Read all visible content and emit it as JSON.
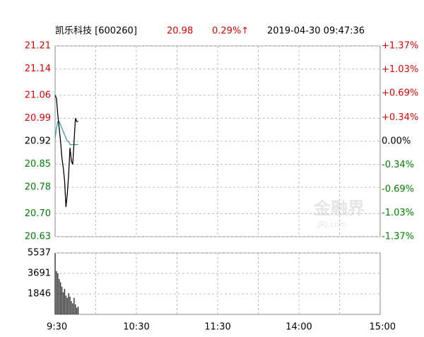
{
  "chart_data": {
    "type": "intraday",
    "title": "凯乐科技 [600260]",
    "price": 20.98,
    "change": "0.29%↑",
    "datetime": "2019-04-30 09:47:36",
    "watermark": "金融界",
    "watermark_sub": "JRJ.com",
    "up_color": "#e00000",
    "down_color": "#008000",
    "x": [
      0,
      1,
      2,
      3,
      4,
      5,
      6,
      7,
      8,
      9,
      10,
      11,
      12,
      13,
      14,
      15,
      16,
      17
    ],
    "xlim": [
      0,
      240
    ],
    "xticks": [
      {
        "value": 0,
        "label": "9:30"
      },
      {
        "value": 60,
        "label": "10:30"
      },
      {
        "value": 120,
        "label": "11:30"
      },
      {
        "value": 180,
        "label": "14:00"
      },
      {
        "value": 240,
        "label": "15:00"
      }
    ],
    "xgrid": [
      30,
      60,
      90,
      120,
      150,
      180,
      210
    ],
    "ylim": [
      20.63,
      21.21
    ],
    "yticks": [
      21.21,
      21.14,
      21.06,
      20.99,
      20.92,
      20.85,
      20.78,
      {
        "value": 20.7,
        "label": "20.70"
      },
      20.63
    ],
    "y2lim": [
      -1.37,
      1.37
    ],
    "y2ticks": [
      {
        "value": 1.37,
        "label": "+1.37%"
      },
      {
        "value": 1.03,
        "label": "+1.03%"
      },
      {
        "value": 0.69,
        "label": "+0.69%"
      },
      {
        "value": 0.34,
        "label": "+0.34%"
      },
      {
        "value": 0,
        "label": "0.00%"
      },
      {
        "value": -0.34,
        "label": "-0.34%"
      },
      {
        "value": -0.69,
        "label": "-0.69%"
      },
      {
        "value": -1.03,
        "label": "-1.03%"
      },
      {
        "value": -1.37,
        "label": "-1.37%"
      }
    ],
    "series": [
      {
        "color": "#000000",
        "values": [
          21.06,
          21.05,
          21.0,
          20.96,
          20.92,
          20.87,
          20.84,
          20.8,
          20.72,
          20.76,
          20.82,
          20.9,
          20.86,
          20.85,
          20.92,
          20.99,
          20.98,
          20.98
        ]
      },
      {
        "color": "#3aa0a0",
        "values": [
          20.93,
          20.96,
          20.98,
          20.98,
          20.97,
          20.96,
          20.95,
          20.94,
          20.93,
          20.92,
          20.92,
          20.91,
          20.91,
          20.91,
          20.91,
          20.91,
          20.91,
          20.91
        ]
      }
    ],
    "volume": {
      "color": "#333333",
      "values": [
        5500,
        3900,
        3700,
        3200,
        2900,
        2500,
        2000,
        2300,
        1700,
        1500,
        1900,
        1600,
        1200,
        1000,
        1500,
        900,
        600,
        700
      ],
      "ylim": [
        0,
        5537
      ],
      "yticks": [
        1846,
        3691,
        5537
      ]
    }
  }
}
